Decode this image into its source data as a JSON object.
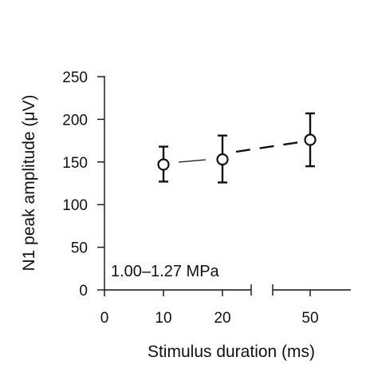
{
  "chart_data": {
    "type": "scatter",
    "title": "",
    "xlabel": "Stimulus duration (ms)",
    "ylabel": "N1 peak amplitude (μV)",
    "annotation": "1.00–1.27 MPa",
    "x_ticks": [
      "0",
      "10",
      "20",
      "50"
    ],
    "y_ticks": [
      "0",
      "50",
      "100",
      "150",
      "200",
      "250"
    ],
    "ylim": [
      0,
      250
    ],
    "x_axis_break": true,
    "grid": false,
    "points": [
      {
        "x": 10,
        "y": 147,
        "err_low": 127,
        "err_high": 168
      },
      {
        "x": 20,
        "y": 153,
        "err_low": 126,
        "err_high": 181
      },
      {
        "x": 50,
        "y": 176,
        "err_low": 145,
        "err_high": 207
      }
    ]
  }
}
